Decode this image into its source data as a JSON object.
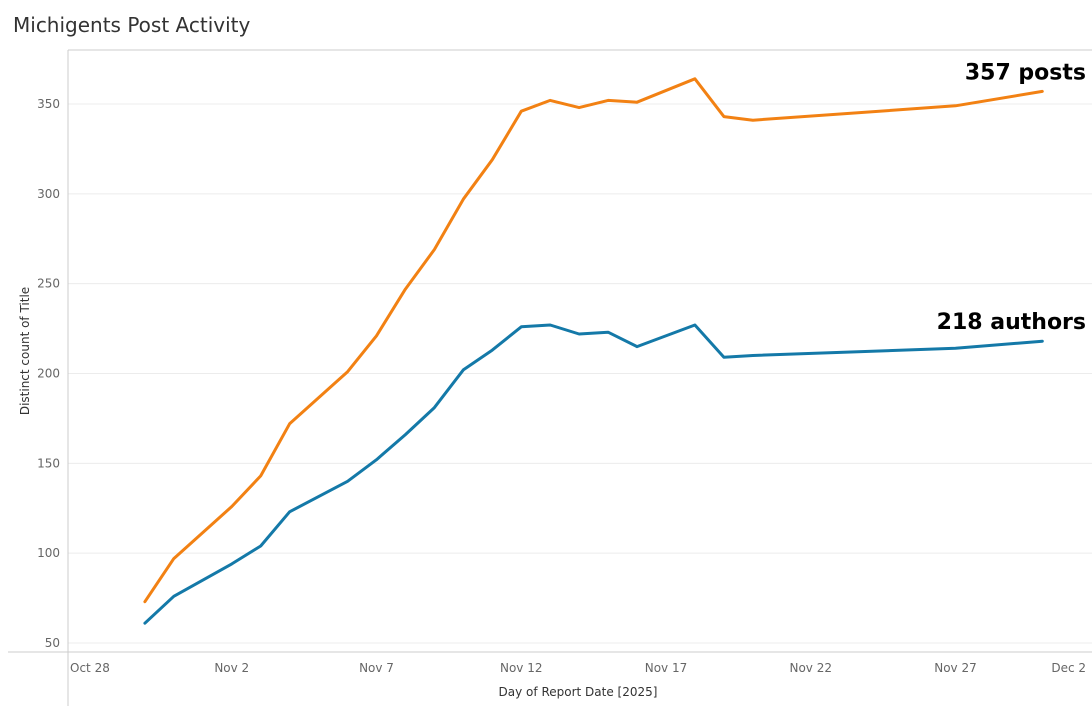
{
  "chart_data": {
    "type": "line",
    "title": "Michigents Post Activity",
    "xlabel": "Day of Report Date [2025]",
    "ylabel": "Distinct count of Title",
    "ylim": [
      45,
      375
    ],
    "yticks": [
      50,
      100,
      150,
      200,
      250,
      300,
      350
    ],
    "xlim_days": [
      -1,
      35
    ],
    "xticks": [
      {
        "label": "Oct 28",
        "day": 0
      },
      {
        "label": "Nov 2",
        "day": 5
      },
      {
        "label": "Nov 7",
        "day": 10
      },
      {
        "label": "Nov 12",
        "day": 15
      },
      {
        "label": "Nov 17",
        "day": 20
      },
      {
        "label": "Nov 22",
        "day": 25
      },
      {
        "label": "Nov 27",
        "day": 30
      },
      {
        "label": "Dec 2",
        "day": 35
      }
    ],
    "grid": true,
    "series": [
      {
        "name": "posts",
        "color": "#f28113",
        "end_label": "357 posts",
        "points": [
          [
            2,
            73
          ],
          [
            3,
            97
          ],
          [
            5,
            126
          ],
          [
            6,
            143
          ],
          [
            7,
            172
          ],
          [
            9,
            201
          ],
          [
            10,
            221
          ],
          [
            11,
            247
          ],
          [
            12,
            269
          ],
          [
            13,
            297
          ],
          [
            14,
            319
          ],
          [
            15,
            346
          ],
          [
            16,
            352
          ],
          [
            17,
            348
          ],
          [
            18,
            352
          ],
          [
            19,
            351
          ],
          [
            21,
            364
          ],
          [
            22,
            343
          ],
          [
            23,
            341
          ],
          [
            30,
            349
          ],
          [
            33,
            357
          ]
        ]
      },
      {
        "name": "authors",
        "color": "#1479a8",
        "end_label": "218 authors",
        "points": [
          [
            2,
            61
          ],
          [
            3,
            76
          ],
          [
            5,
            94
          ],
          [
            6,
            104
          ],
          [
            7,
            123
          ],
          [
            9,
            140
          ],
          [
            10,
            152
          ],
          [
            11,
            166
          ],
          [
            12,
            181
          ],
          [
            13,
            202
          ],
          [
            14,
            213
          ],
          [
            15,
            226
          ],
          [
            16,
            227
          ],
          [
            17,
            222
          ],
          [
            18,
            223
          ],
          [
            19,
            215
          ],
          [
            21,
            227
          ],
          [
            22,
            209
          ],
          [
            23,
            210
          ],
          [
            30,
            214
          ],
          [
            33,
            218
          ]
        ]
      }
    ]
  }
}
